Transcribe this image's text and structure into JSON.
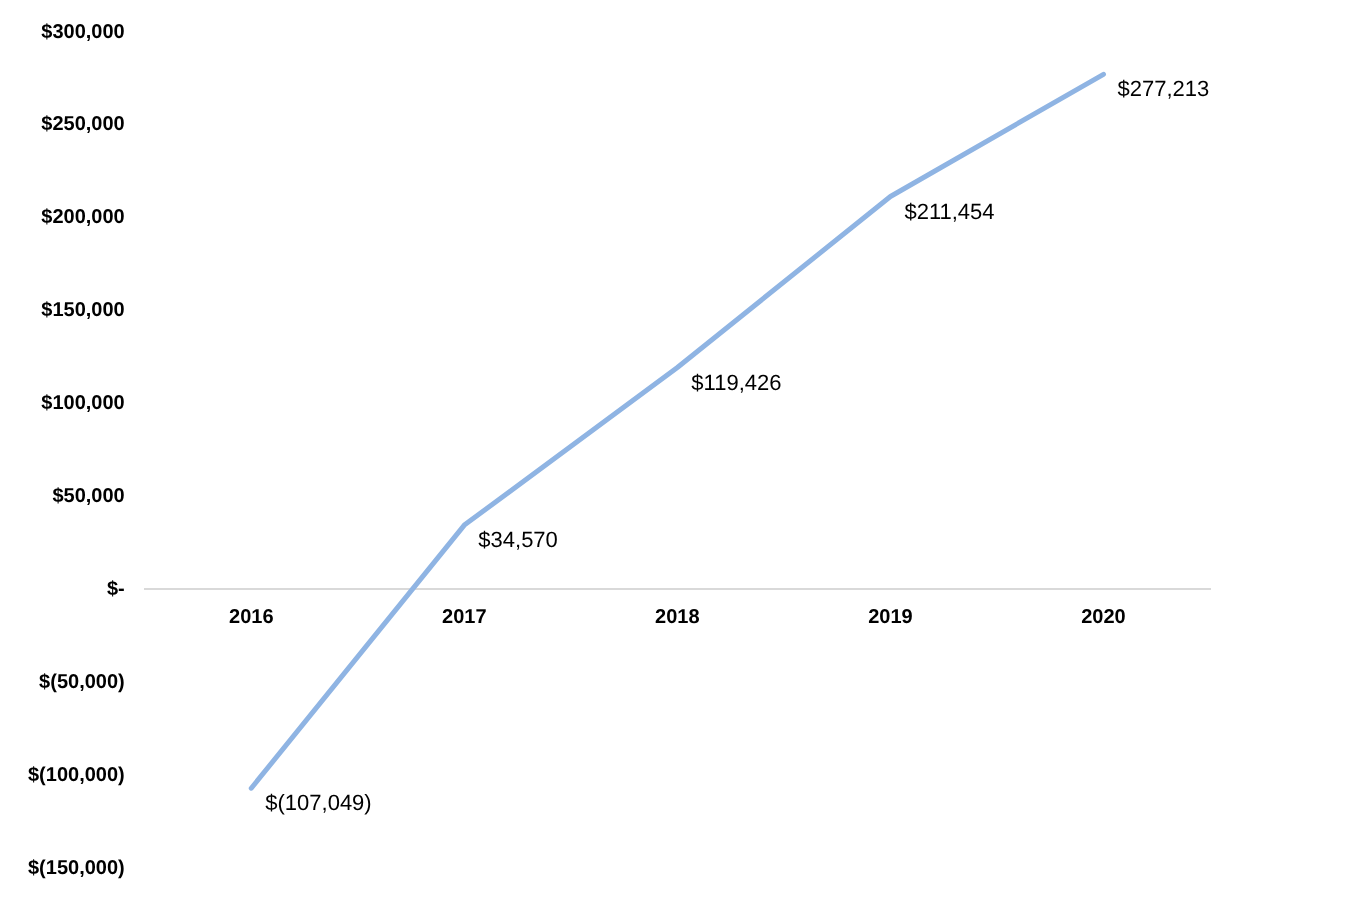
{
  "chart_data": {
    "type": "line",
    "categories": [
      "2016",
      "2017",
      "2018",
      "2019",
      "2020"
    ],
    "series": [
      {
        "color": "#8fb4e3",
        "values": [
          -107049,
          34570,
          119426,
          211454,
          277213
        ],
        "value_labels": [
          "$(107,049)",
          "$34,570",
          "$119,426",
          "$211,454",
          "$277,213"
        ]
      }
    ],
    "ylim": [
      -150000,
      300000
    ],
    "yticks": [
      {
        "value": -150000,
        "label": "$(150,000)"
      },
      {
        "value": -100000,
        "label": "$(100,000)"
      },
      {
        "value": -50000,
        "label": "$(50,000)"
      },
      {
        "value": 0,
        "label": "$-"
      },
      {
        "value": 50000,
        "label": "$50,000"
      },
      {
        "value": 100000,
        "label": "$100,000"
      },
      {
        "value": 150000,
        "label": "$150,000"
      },
      {
        "value": 200000,
        "label": "$200,000"
      },
      {
        "value": 250000,
        "label": "$250,000"
      },
      {
        "value": 300000,
        "label": "$300,000"
      }
    ],
    "grid": false,
    "legend": false,
    "marker": "none",
    "line_style": "solid"
  }
}
